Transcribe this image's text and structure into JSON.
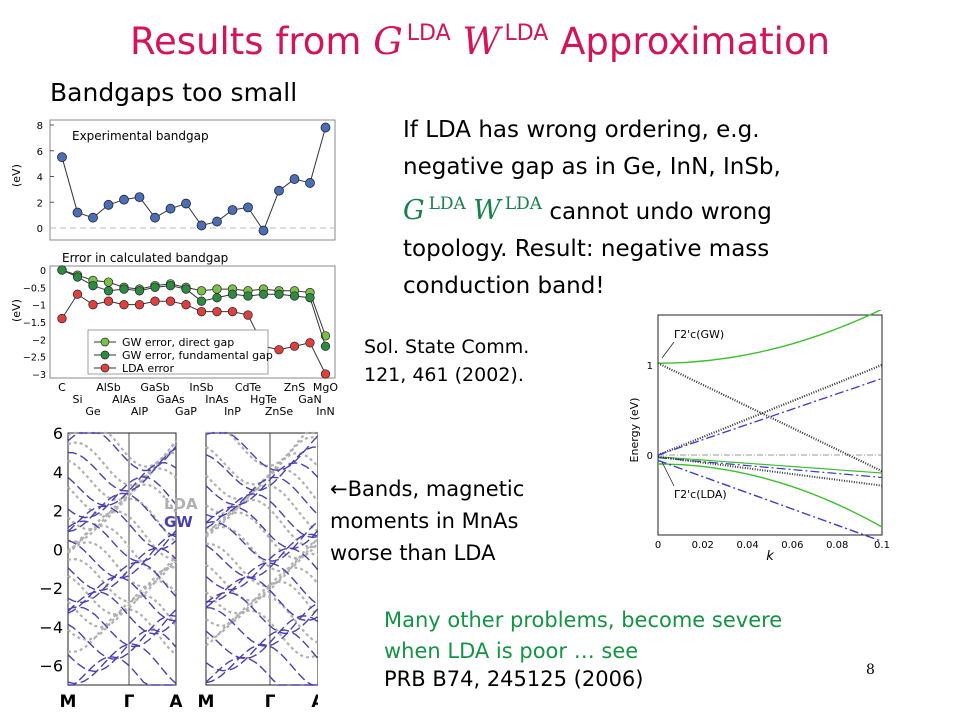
{
  "slide": {
    "title_prefix": "Results from",
    "title_g": "G",
    "title_w": "W",
    "title_sup": "LDA",
    "title_suffix": "Approximation",
    "subtitle": "Bandgaps too small",
    "para_line1": "If LDA has wrong ordering, e.g.",
    "para_line2": "negative gap as in Ge, InN, InSb,",
    "para_g": "G",
    "para_w": "W",
    "para_sup": "LDA",
    "para_line3_tail": " cannot undo wrong",
    "para_line4": "topology.  Result: negative mass",
    "para_line5": "conduction band!",
    "ref1_line1": "Sol. State Comm.",
    "ref1_line2": "121, 461 (2002).",
    "bands_arrow": "←",
    "bands_line1": "Bands, magnetic",
    "bands_line2": "moments in MnAs",
    "bands_line3": "worse than LDA",
    "green_line1": "Many other problems, become severe",
    "green_line2": "when LDA is poor  … see",
    "ref2": "PRB B74, 245125 (2006)",
    "page_number": "8"
  },
  "chart_data": [
    {
      "type": "line",
      "title": "Experimental bandgap",
      "ylabel": "(eV)",
      "yticks": [
        "0",
        "2",
        "4",
        "6",
        "8"
      ],
      "ylim": [
        0,
        8
      ],
      "x": [
        0,
        1,
        2,
        3,
        4,
        5,
        6,
        7,
        8,
        9,
        10,
        11,
        12,
        13,
        14,
        15,
        16,
        17
      ],
      "values": [
        5.5,
        1.2,
        0.8,
        1.8,
        2.2,
        2.4,
        0.8,
        1.5,
        1.9,
        0.2,
        0.5,
        1.4,
        1.6,
        -0.2,
        2.9,
        3.8,
        3.5,
        7.8
      ],
      "color": "#4a6fb5"
    },
    {
      "type": "line",
      "title": "Error in calculated bandgap",
      "ylabel": "(eV)",
      "yticks": [
        "0",
        "−0.5",
        "−1",
        "−1.5",
        "−2",
        "−2.5",
        "−3"
      ],
      "ylim": [
        -3,
        0
      ],
      "categories_top": [
        "C",
        "AlSb",
        "GaSb",
        "InSb",
        "CdTe",
        "ZnS",
        "MgO"
      ],
      "categories_bottom": [
        "Si",
        "AlAs",
        "GaAs",
        "InAs",
        "HgTe",
        "GaN"
      ],
      "categories_bottom2": [
        "Ge",
        "AlP",
        "GaP",
        "InP",
        "ZnSe",
        "InN"
      ],
      "legend": [
        "GW error, direct gap",
        "GW error, fundamental gap",
        "LDA error"
      ],
      "series": [
        {
          "name": "GW error, direct gap",
          "color": "#7ac143",
          "values": [
            0,
            -0.15,
            -0.3,
            -0.35,
            -0.5,
            -0.55,
            -0.45,
            -0.4,
            -0.5,
            -0.6,
            -0.55,
            -0.55,
            -0.6,
            -0.55,
            -0.6,
            -0.6,
            -0.65,
            -1.9
          ]
        },
        {
          "name": "GW error, fundamental gap",
          "color": "#2e8b3e",
          "values": [
            0,
            -0.2,
            -0.45,
            -0.6,
            -0.55,
            -0.6,
            -0.5,
            -0.45,
            -0.55,
            -0.9,
            -0.8,
            -0.7,
            -0.75,
            -0.7,
            -0.7,
            -0.75,
            -0.8,
            -2.2
          ]
        },
        {
          "name": "LDA error",
          "color": "#e0403a",
          "values": [
            -1.4,
            -0.7,
            -1.0,
            -0.9,
            -1.0,
            -1.0,
            -0.9,
            -0.9,
            -1.0,
            -1.2,
            -1.2,
            -1.2,
            -1.3,
            -2.2,
            -2.3,
            -2.2,
            -2.1,
            -3.0
          ]
        }
      ]
    },
    {
      "type": "line",
      "title": "",
      "ylabel": "",
      "yticks": [
        "6",
        "4",
        "2",
        "0",
        "−2",
        "−4",
        "−6"
      ],
      "ylim": [
        -7,
        6
      ],
      "kpoints": [
        "M",
        "Γ",
        "A",
        "M",
        "Γ",
        "A"
      ],
      "legend": [
        "LDA",
        "GW"
      ],
      "series": [
        {
          "name": "LDA",
          "color": "#b0b0b0"
        },
        {
          "name": "GW",
          "color": "#4a3fb0"
        }
      ]
    },
    {
      "type": "line",
      "title": "",
      "xlabel": "k",
      "ylabel": "Energy (eV)",
      "xticks": [
        "0",
        "0.02",
        "0.04",
        "0.06",
        "0.08",
        "0.1"
      ],
      "yticks": [
        "0",
        "1"
      ],
      "xlim": [
        0,
        0.1
      ],
      "annotations": [
        "Γ2'c(GW)",
        "Γ2'c(LDA)"
      ]
    }
  ]
}
